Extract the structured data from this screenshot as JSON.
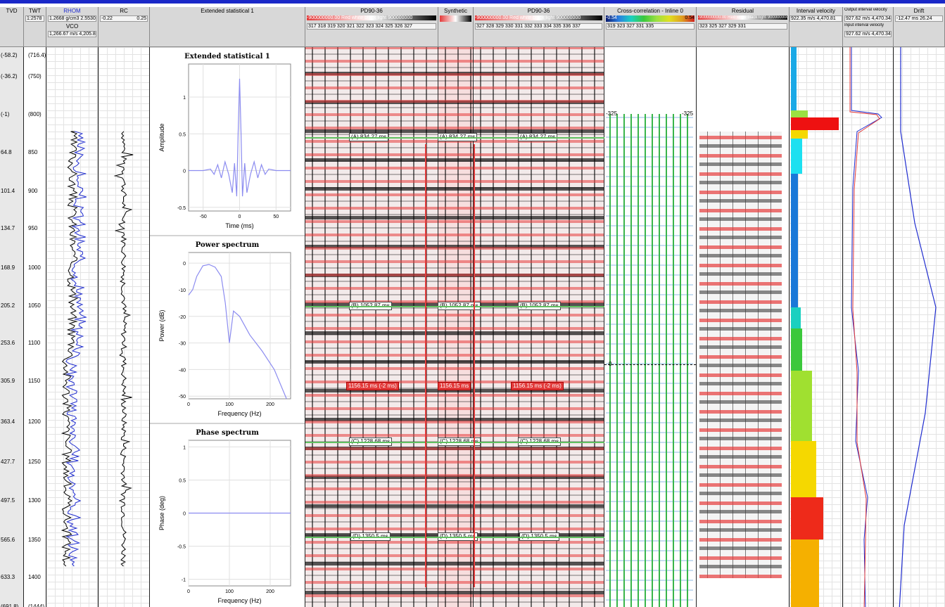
{
  "headers": {
    "tvd": {
      "title": "TVD"
    },
    "twt": {
      "title": "TWT",
      "value": "1:2578"
    },
    "rhom": {
      "title": "RHOM",
      "range": "1.2668 g/cm3 2.5530",
      "sub": "VCO",
      "sub_range": "1,266.67 m/s 4,205.83"
    },
    "rc": {
      "title": "RC",
      "min": "-0.22",
      "max": "0.25"
    },
    "ext": {
      "title": "Extended statistical 1"
    },
    "pd1": {
      "title": "PD90-36",
      "bar": "-900000000.00 Red white black light 900000000",
      "ticks": "317 318 319 320 321 322 323 324 325 326 327"
    },
    "syn": {
      "title": "Synthetic"
    },
    "pd2": {
      "title": "PD90-36",
      "bar": "-900000000.00 Red white black light 900000000",
      "ticks": "327 328 329 330 331 332 333 334 335 336 337"
    },
    "xcor": {
      "title": "Cross-correlation - Inline 0",
      "min": "-0.54",
      "max": "0.54",
      "ticks": "319  323  327  331  335"
    },
    "resid": {
      "title": "Residual",
      "bar": "-900000000.00 Red white black light 900000000",
      "ticks": "323  325  327  329  331"
    },
    "ivel": {
      "title": "Interval velocity",
      "range": "922.35 m/s 4,470.81"
    },
    "oivel": {
      "title": "Output interval velocity",
      "range": "927.62 m/s 4,470.34",
      "sub": "Input interval velocity",
      "sub_range": "927.62 m/s 4,470.34"
    },
    "drift": {
      "title": "Drift",
      "range": "-12.47  ms  26.24"
    }
  },
  "depth_labels": [
    {
      "tvd": "(-58.2)",
      "twt": "(716.4)"
    },
    {
      "tvd": "(-36.2)",
      "twt": "(750)"
    },
    {
      "tvd": "(-1)",
      "twt": "(800)"
    },
    {
      "tvd": "64.8",
      "twt": "850"
    },
    {
      "tvd": "101.4",
      "twt": "900"
    },
    {
      "tvd": "134.7",
      "twt": "950"
    },
    {
      "tvd": "168.9",
      "twt": "1000"
    },
    {
      "tvd": "205.2",
      "twt": "1050"
    },
    {
      "tvd": "253.6",
      "twt": "1100"
    },
    {
      "tvd": "305.9",
      "twt": "1150"
    },
    {
      "tvd": "363.4",
      "twt": "1200"
    },
    {
      "tvd": "427.7",
      "twt": "1250"
    },
    {
      "tvd": "497.5",
      "twt": "1300"
    },
    {
      "tvd": "565.6",
      "twt": "1350"
    },
    {
      "tvd": "633.3",
      "twt": "1400"
    },
    {
      "tvd": "(691.8)",
      "twt": "(1444)"
    }
  ],
  "markers": {
    "a": "(A) 834.27 ms",
    "b": "(B) 1052.87 ms",
    "c": "(C) 1228.68 ms",
    "d": "(D) 1350.5 ms",
    "shift": "1156.15 ms (-2 ms)",
    "shift_syn": "1156.15 ms"
  },
  "xcor_labels": {
    "top_left": "-325",
    "top_right": "-325",
    "zero": "0"
  },
  "plots": {
    "wavelet": {
      "title": "Extended statistical 1",
      "xlabel": "Time (ms)",
      "ylabel": "Amplitude",
      "xticks": [
        "-50",
        "0",
        "50"
      ],
      "yticks": [
        "1",
        "0.5",
        "0",
        "-0.5"
      ]
    },
    "power": {
      "title": "Power spectrum",
      "xlabel": "Frequency (Hz)",
      "ylabel": "Power (dB)",
      "xticks": [
        "0",
        "100",
        "200"
      ],
      "yticks": [
        "0",
        "-10",
        "-20",
        "-30",
        "-40",
        "-50"
      ]
    },
    "phase": {
      "title": "Phase spectrum",
      "xlabel": "Frequency (Hz)",
      "ylabel": "Phase (deg)",
      "xticks": [
        "0",
        "100",
        "200"
      ],
      "yticks": [
        "1",
        "0.5",
        "0",
        "-0.5",
        "-1"
      ]
    }
  },
  "chart_data": [
    {
      "type": "line",
      "title": "Extended statistical 1",
      "xlabel": "Time (ms)",
      "ylabel": "Amplitude",
      "xlim": [
        -70,
        70
      ],
      "ylim": [
        -0.55,
        1.45
      ],
      "series": [
        {
          "x": [
            -70,
            -50,
            -40,
            -35,
            -30,
            -25,
            -20,
            -15,
            -10,
            -7,
            -4,
            -2,
            0,
            2,
            4,
            7,
            10,
            15,
            20,
            25,
            30,
            35,
            40,
            50,
            70
          ],
          "y": [
            0,
            0,
            0.02,
            -0.05,
            0.08,
            -0.1,
            0.12,
            -0.05,
            -0.3,
            0.1,
            -0.35,
            0.5,
            1.25,
            0.5,
            -0.35,
            0.1,
            -0.3,
            -0.05,
            0.12,
            -0.1,
            0.08,
            -0.05,
            0.02,
            0,
            0
          ],
          "color": "#8c8cf0"
        }
      ]
    },
    {
      "type": "line",
      "title": "Power spectrum",
      "xlabel": "Frequency (Hz)",
      "ylabel": "Power (dB)",
      "xlim": [
        0,
        250
      ],
      "ylim": [
        -51,
        4
      ],
      "series": [
        {
          "x": [
            0,
            10,
            20,
            35,
            50,
            65,
            80,
            90,
            100,
            110,
            125,
            150,
            180,
            210,
            240
          ],
          "y": [
            -12,
            -10,
            -5,
            -1,
            -0.5,
            -1.5,
            -5,
            -15,
            -30,
            -18,
            -20,
            -27,
            -33,
            -40,
            -51
          ],
          "color": "#8c8cf0"
        }
      ]
    },
    {
      "type": "line",
      "title": "Phase spectrum",
      "xlabel": "Frequency (Hz)",
      "ylabel": "Phase (deg)",
      "xlim": [
        0,
        250
      ],
      "ylim": [
        -1.1,
        1.1
      ],
      "series": [
        {
          "x": [
            0,
            250
          ],
          "y": [
            0,
            0
          ],
          "color": "#8c8cf0"
        }
      ]
    }
  ],
  "colors": {
    "header_bar": "#1a28c8",
    "seismic_red": "#e63c3c",
    "trace_blue": "#1f2ccf",
    "well_black": "#000000",
    "vel_cyan": "#1aa9e6",
    "vel_yellow": "#f5d800",
    "vel_red": "#ee1111",
    "marker_green": "#60c060"
  }
}
